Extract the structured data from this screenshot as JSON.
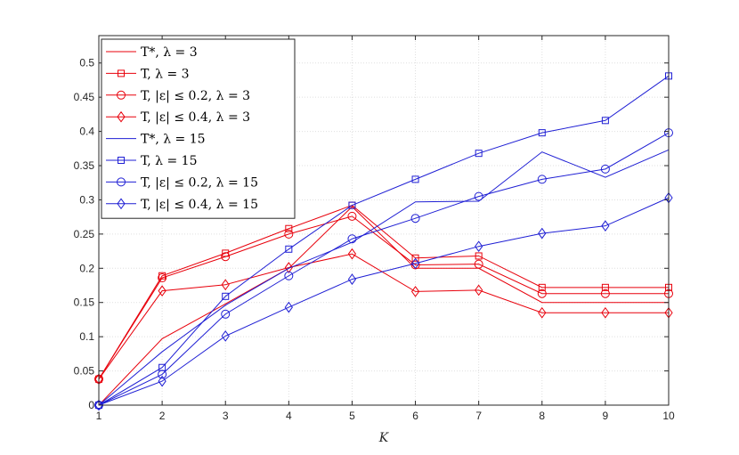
{
  "chart_data": {
    "type": "line",
    "xlabel": "K",
    "ylabel": "",
    "title": "",
    "xlim": [
      1,
      10
    ],
    "ylim": [
      0,
      0.54
    ],
    "xticks": [
      "1",
      "2",
      "3",
      "4",
      "5",
      "6",
      "7",
      "8",
      "9",
      "10"
    ],
    "yticks": [
      "0",
      "0.05",
      "0.1",
      "0.15",
      "0.2",
      "0.25",
      "0.3",
      "0.35",
      "0.4",
      "0.45",
      "0.5"
    ],
    "grid": true,
    "legend_position": "top-left",
    "x": [
      1,
      2,
      3,
      4,
      5,
      6,
      7,
      8,
      9,
      10
    ],
    "series": [
      {
        "name": "T*, λ = 3",
        "color": "#e8000b",
        "marker": "none",
        "values": [
          0.0,
          0.097,
          0.148,
          0.2,
          0.29,
          0.2,
          0.2,
          0.15,
          0.15,
          0.15
        ]
      },
      {
        "name": "T, λ = 3",
        "color": "#e8000b",
        "marker": "square",
        "values": [
          0.038,
          0.189,
          0.222,
          0.258,
          0.292,
          0.215,
          0.218,
          0.172,
          0.172,
          0.172
        ]
      },
      {
        "name": "T, |ε| ≤ 0.2, λ = 3",
        "color": "#e8000b",
        "marker": "circle",
        "values": [
          0.038,
          0.186,
          0.217,
          0.25,
          0.276,
          0.205,
          0.206,
          0.163,
          0.163,
          0.163
        ]
      },
      {
        "name": "T, |ε| ≤ 0.4, λ = 3",
        "color": "#e8000b",
        "marker": "diamond",
        "values": [
          0.038,
          0.167,
          0.176,
          0.201,
          0.221,
          0.166,
          0.168,
          0.135,
          0.135,
          0.135
        ]
      },
      {
        "name": "T*, λ = 15",
        "color": "#1f1fd4",
        "marker": "none",
        "values": [
          0.0,
          0.078,
          0.146,
          0.2,
          0.238,
          0.297,
          0.298,
          0.37,
          0.333,
          0.373
        ]
      },
      {
        "name": "T, λ = 15",
        "color": "#1f1fd4",
        "marker": "square",
        "values": [
          0.0,
          0.055,
          0.159,
          0.228,
          0.292,
          0.33,
          0.368,
          0.398,
          0.416,
          0.481
        ]
      },
      {
        "name": "T, |ε| ≤ 0.2, λ = 15",
        "color": "#1f1fd4",
        "marker": "circle",
        "values": [
          0.0,
          0.045,
          0.133,
          0.189,
          0.243,
          0.273,
          0.305,
          0.33,
          0.345,
          0.398
        ]
      },
      {
        "name": "T, |ε| ≤ 0.4, λ = 15",
        "color": "#1f1fd4",
        "marker": "diamond",
        "values": [
          0.0,
          0.035,
          0.101,
          0.143,
          0.184,
          0.207,
          0.232,
          0.251,
          0.262,
          0.303
        ]
      }
    ]
  }
}
